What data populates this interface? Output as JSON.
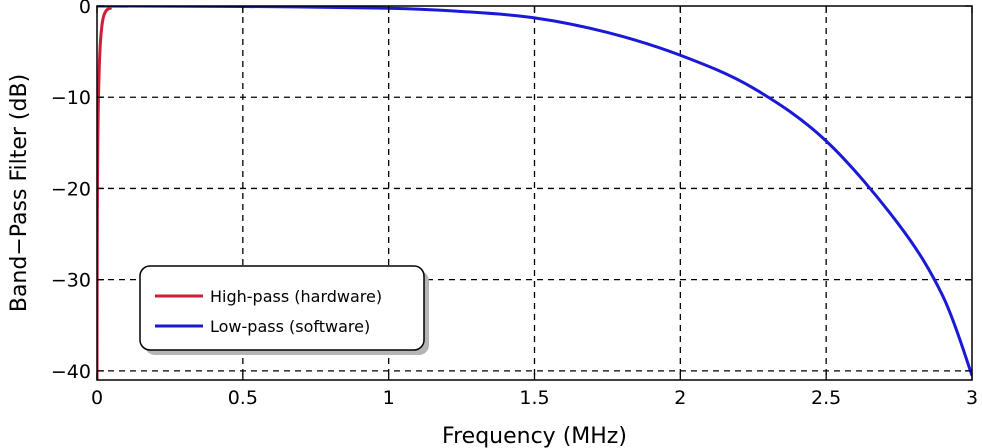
{
  "chart_data": {
    "type": "line",
    "title": "",
    "xlabel": "Frequency (MHz)",
    "ylabel": "Band−Pass Filter (dB)",
    "xlim": [
      0,
      3
    ],
    "ylim": [
      -41,
      0
    ],
    "xticks": [
      0,
      0.5,
      1,
      1.5,
      2,
      2.5,
      3
    ],
    "xtick_labels": [
      "0",
      "0.5",
      "1",
      "1.5",
      "2",
      "2.5",
      "3"
    ],
    "yticks": [
      -40,
      -30,
      -20,
      -10,
      0
    ],
    "ytick_labels": [
      "−40",
      "−30",
      "−20",
      "−10",
      "0"
    ],
    "grid": true,
    "legend_position": "lower-left",
    "series": [
      {
        "name": "High-pass (hardware)",
        "color": "#cc1f36",
        "x": [
          0.0,
          0.0005,
          0.001,
          0.002,
          0.003,
          0.005,
          0.008,
          0.012,
          0.016,
          0.02,
          0.025,
          0.03,
          0.035,
          0.04,
          0.045,
          0.05
        ],
        "y": [
          -41,
          -30,
          -24,
          -18,
          -14.5,
          -10,
          -6.5,
          -3.8,
          -2.4,
          -1.5,
          -0.9,
          -0.6,
          -0.4,
          -0.3,
          -0.25,
          -0.2
        ]
      },
      {
        "name": "Low-pass (software)",
        "color": "#1a1ad6",
        "x": [
          0.0,
          0.5,
          1.0,
          1.25,
          1.5,
          1.75,
          2.0,
          2.25,
          2.5,
          2.75,
          2.9,
          3.0
        ],
        "y": [
          0.0,
          -0.05,
          -0.25,
          -0.6,
          -1.3,
          -2.9,
          -5.4,
          -9.0,
          -14.8,
          -24.0,
          -31.8,
          -40.5
        ]
      }
    ]
  }
}
